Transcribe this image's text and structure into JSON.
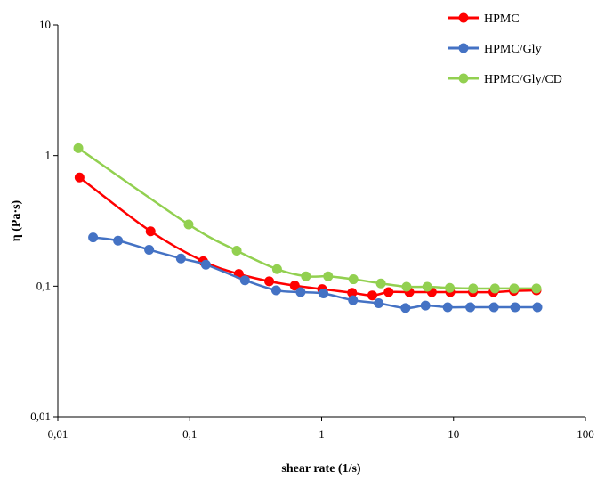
{
  "chart_data": {
    "type": "line",
    "xscale": "log",
    "yscale": "log",
    "xlabel": "shear rate (1/s)",
    "ylabel": "η (Pa·s)",
    "xlim": [
      0.01,
      100
    ],
    "ylim": [
      0.01,
      10
    ],
    "x_tick_values": [
      0.01,
      0.1,
      1,
      10,
      100
    ],
    "x_tick_labels": [
      "0,01",
      "0,1",
      "1",
      "10",
      "100"
    ],
    "y_tick_values": [
      0.01,
      0.1,
      1,
      10
    ],
    "y_tick_labels": [
      "0,01",
      "0,1",
      "1",
      "10"
    ],
    "grid": false,
    "legend_position": "top-right",
    "series": [
      {
        "name": "HPMC",
        "color": "#ff0000",
        "x": [
          0.0146,
          0.0505,
          0.1265,
          0.2354,
          0.4004,
          0.6255,
          1.0084,
          1.7026,
          2.4207,
          3.2183,
          4.6225,
          6.8452,
          9.4412,
          14.0256,
          20.0584,
          28.6355,
          42.5378
        ],
        "y": [
          0.68,
          0.263,
          0.155,
          0.124,
          0.109,
          0.101,
          0.095,
          0.089,
          0.085,
          0.09,
          0.09,
          0.09,
          0.09,
          0.09,
          0.09,
          0.092,
          0.093
        ]
      },
      {
        "name": "HPMC/Gly",
        "color": "#4472c4",
        "x": [
          0.0185,
          0.0286,
          0.0492,
          0.0857,
          0.1325,
          0.2621,
          0.4523,
          0.693,
          1.0329,
          1.7287,
          2.7065,
          4.3289,
          6.1245,
          9.0233,
          13.4006,
          20.2446,
          29.3293,
          43.2421
        ],
        "y": [
          0.236,
          0.223,
          0.19,
          0.163,
          0.146,
          0.111,
          0.093,
          0.09,
          0.088,
          0.078,
          0.074,
          0.068,
          0.071,
          0.069,
          0.069,
          0.069,
          0.069,
          0.069
        ]
      },
      {
        "name": "HPMC/Gly/CD",
        "color": "#92d050",
        "x": [
          0.0143,
          0.098,
          0.2271,
          0.4594,
          0.76,
          1.1198,
          1.7419,
          2.8124,
          4.4064,
          6.3184,
          9.3649,
          14.0769,
          20.6097,
          28.8414,
          42.5378
        ],
        "y": [
          1.14,
          0.297,
          0.187,
          0.135,
          0.119,
          0.119,
          0.113,
          0.105,
          0.099,
          0.099,
          0.097,
          0.096,
          0.096,
          0.096,
          0.096
        ]
      }
    ]
  }
}
